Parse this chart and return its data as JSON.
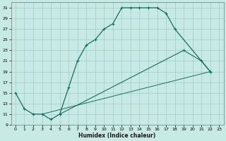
{
  "xlabel": "Humidex (Indice chaleur)",
  "bg_color": "#c8eae5",
  "grid_color": "#a0ccc6",
  "line_color": "#1a6b60",
  "xlim": [
    -0.5,
    23.5
  ],
  "ylim": [
    9,
    32
  ],
  "xticks": [
    0,
    1,
    2,
    3,
    4,
    5,
    6,
    7,
    8,
    9,
    10,
    11,
    12,
    13,
    14,
    15,
    16,
    17,
    18,
    19,
    20,
    21,
    22,
    23
  ],
  "yticks": [
    9,
    11,
    13,
    15,
    17,
    19,
    21,
    23,
    25,
    27,
    29,
    31
  ],
  "line1_x": [
    0,
    1,
    2,
    3,
    4,
    5,
    6,
    7,
    8,
    9,
    10,
    11,
    12,
    13,
    14,
    15,
    16,
    17,
    18,
    22
  ],
  "line1_y": [
    15,
    12,
    11,
    11,
    10,
    11,
    16,
    21,
    24,
    25,
    27,
    28,
    31,
    31,
    31,
    31,
    31,
    30,
    27,
    19
  ],
  "line2_x": [
    3,
    22
  ],
  "line2_y": [
    11,
    19
  ],
  "line3_x": [
    5,
    19,
    21,
    22
  ],
  "line3_y": [
    11,
    23,
    21,
    19
  ]
}
